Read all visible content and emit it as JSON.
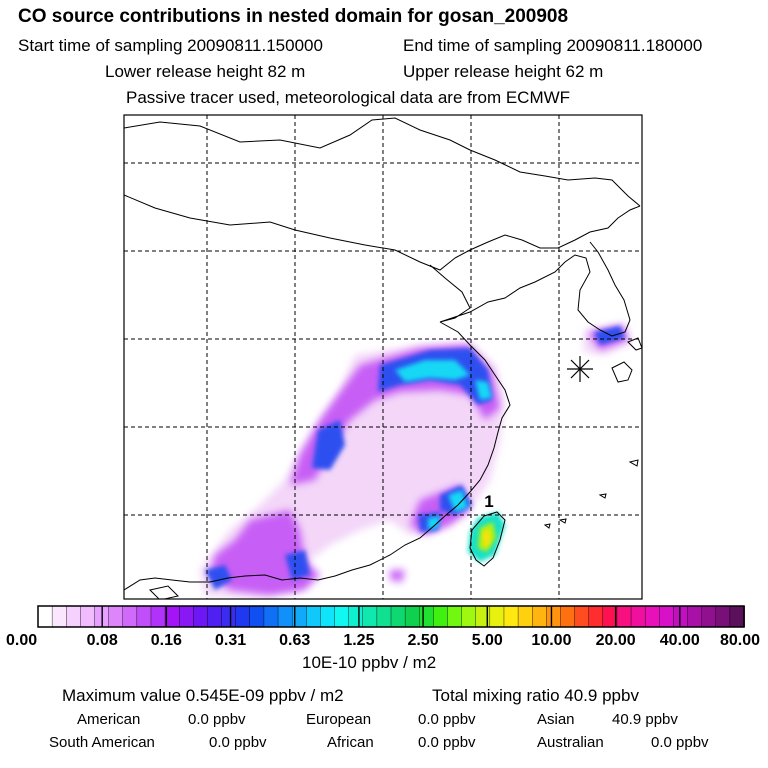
{
  "header": {
    "title": "CO  source contributions in nested domain for gosan_200908",
    "start_label": "Start time of sampling 20090811.150000",
    "end_label": "End time of sampling 20090811.180000",
    "lower_label": "Lower release height   82 m",
    "upper_label": "Upper release height   62 m",
    "tracer_note": "Passive tracer used, meteorological data are from ECMWF"
  },
  "map": {
    "marker_label": "1",
    "receptor_symbol": "asterisk"
  },
  "colorbar": {
    "unit": "10E-10 ppbv / m2",
    "tick_labels": [
      "0.00",
      "0.08",
      "0.16",
      "0.31",
      "0.63",
      "1.25",
      "2.50",
      "5.00",
      "10.00",
      "20.00",
      "40.00",
      "80.00"
    ],
    "colors": [
      "#ffffff",
      "#fae6ff",
      "#f5d2fe",
      "#f0bcfe",
      "#e6a0fd",
      "#dd86fc",
      "#cf6afb",
      "#c04ffa",
      "#b132f8",
      "#a514f6",
      "#8a18f5",
      "#6d18f4",
      "#5020f2",
      "#3a2cf0",
      "#2038ef",
      "#1050f2",
      "#1070f5",
      "#1090f8",
      "#10aaf9",
      "#10c8fa",
      "#10e4fa",
      "#10f8f0",
      "#10f0d0",
      "#10e8b0",
      "#10e090",
      "#10d870",
      "#10d050",
      "#20e030",
      "#40f010",
      "#70f810",
      "#a0f810",
      "#c8f010",
      "#e8f010",
      "#ffe810",
      "#ffd010",
      "#ffb410",
      "#ff9410",
      "#ff7010",
      "#ff4c20",
      "#ff2c30",
      "#ff1050",
      "#f81080",
      "#f010a0",
      "#e810b8",
      "#d810c8",
      "#c010c0",
      "#a810a8",
      "#901090",
      "#781078",
      "#5a105a"
    ]
  },
  "stats": {
    "max_label": "Maximum value  0.545E-09 ppbv / m2",
    "total_label": "Total mixing ratio       40.9 ppbv",
    "regions": [
      {
        "name": "American",
        "value": "0.0 ppbv"
      },
      {
        "name": "European",
        "value": "0.0 ppbv"
      },
      {
        "name": "Asian",
        "value": "40.9 ppbv"
      },
      {
        "name": "South American",
        "value": "0.0 ppbv"
      },
      {
        "name": "African",
        "value": "0.0 ppbv"
      },
      {
        "name": "Australian",
        "value": "0.0 ppbv"
      }
    ]
  }
}
